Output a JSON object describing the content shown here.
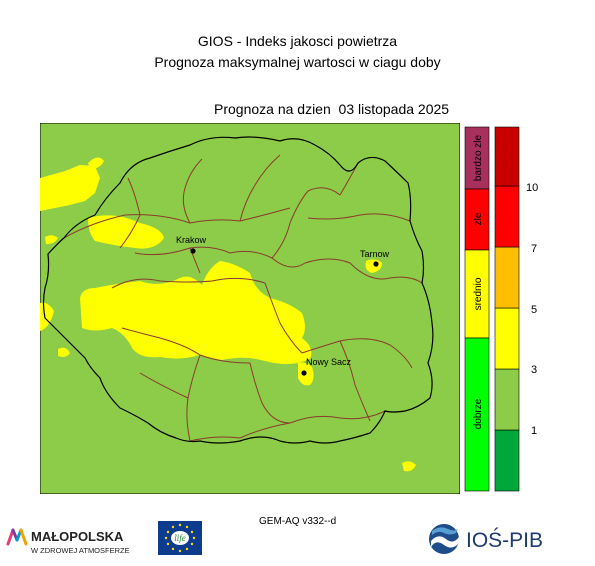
{
  "header": {
    "title_line1": "GIOS - Indeks jakosci powietrza",
    "title_line2": "Prognoza maksymalnej wartosci w ciagu doby",
    "forecast_date": "Prognoza na dzien  03 listopada 2025"
  },
  "cities": [
    {
      "name": "Krakow"
    },
    {
      "name": "Tarnow"
    },
    {
      "name": "Nowy Sacz"
    }
  ],
  "category_legend": [
    {
      "label": "bardzo zle",
      "color": "#a8305c"
    },
    {
      "label": "zle",
      "color": "#ff0000"
    },
    {
      "label": "srednio",
      "color": "#ffff00"
    },
    {
      "label": "dobrze",
      "color": "#00ff00"
    }
  ],
  "value_scale": {
    "colors": [
      "#00a83c",
      "#8ccc48",
      "#ffff00",
      "#ffbf00",
      "#ff0000",
      "#c80000"
    ],
    "ticks": [
      "1",
      "3",
      "5",
      "7",
      "10"
    ]
  },
  "map_colors": {
    "good": "#8ccc48",
    "moderate": "#ffff00",
    "province_border": "#000000",
    "county_border": "#8b3a2e"
  },
  "footer": {
    "model_version": "GEM-AQ v332--d",
    "logo_malopolska_line1": "MAŁOPOLSKA",
    "logo_malopolska_line2": "W ZDROWEJ ATMOSFERZE",
    "logo_eu_text": "life",
    "logo_ios_text": "IOŚ-PIB"
  }
}
